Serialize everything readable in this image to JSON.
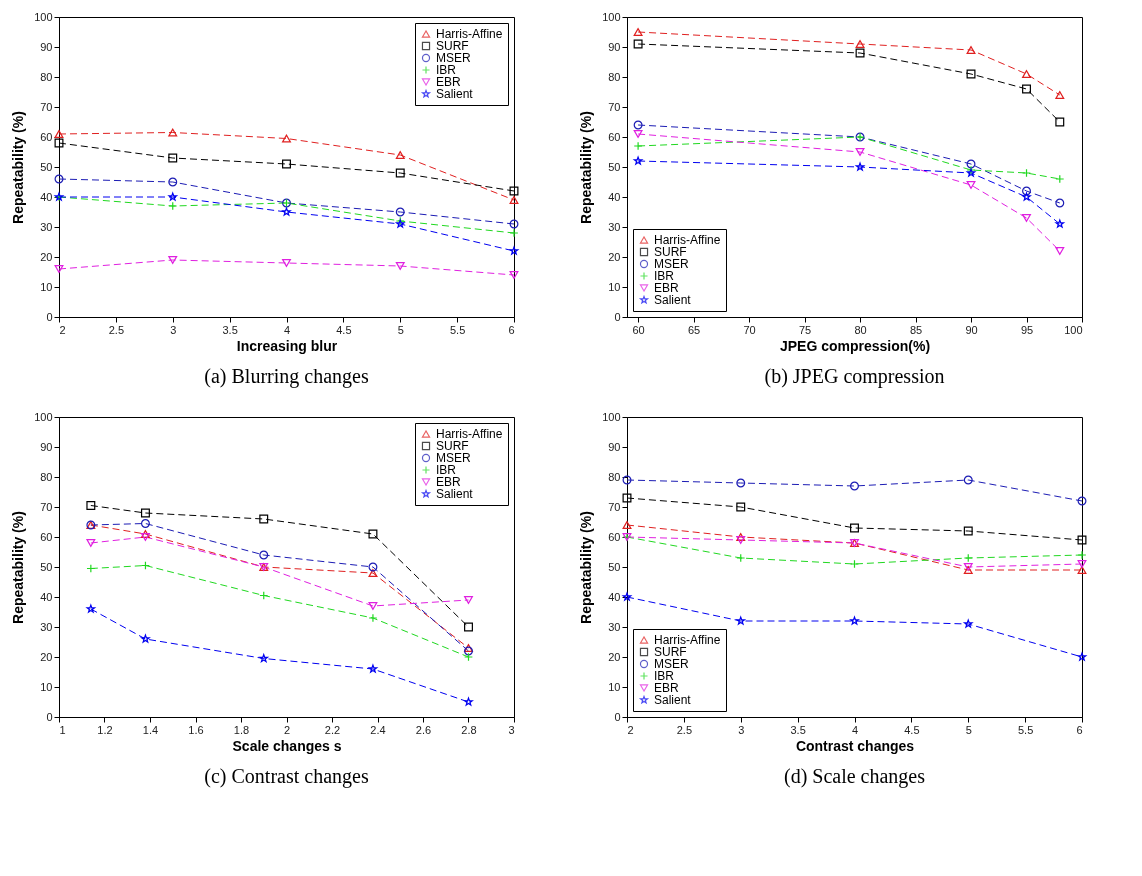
{
  "chart_data": [
    {
      "type": "line",
      "title": "(a) Blurring changes",
      "xlabel": "Increasing blur",
      "ylabel": "Repeatability (%)",
      "x": [
        2,
        3,
        4,
        5,
        6
      ],
      "xlim": [
        2,
        6
      ],
      "xticks": [
        2,
        2.5,
        3,
        3.5,
        4,
        4.5,
        5,
        5.5,
        6
      ],
      "ylim": [
        0,
        100
      ],
      "yticks": [
        0,
        10,
        20,
        30,
        40,
        50,
        60,
        70,
        80,
        90,
        100
      ],
      "legend": "top right",
      "line_style": "dashed",
      "series": [
        {
          "name": "Harris-Affine",
          "color": "#e02020",
          "marker": "triangle",
          "values": [
            61,
            61.5,
            59.5,
            54,
            39
          ]
        },
        {
          "name": "SURF",
          "color": "#000000",
          "marker": "square",
          "values": [
            58,
            53,
            51,
            48,
            42
          ]
        },
        {
          "name": "MSER",
          "color": "#1c1cb4",
          "marker": "circle",
          "values": [
            46,
            45,
            38,
            35,
            31
          ]
        },
        {
          "name": "IBR",
          "color": "#20d820",
          "marker": "cross",
          "values": [
            40,
            37,
            38,
            32,
            28
          ]
        },
        {
          "name": "EBR",
          "color": "#e020e0",
          "marker": "triangle-down",
          "values": [
            16,
            19,
            18,
            17,
            14
          ]
        },
        {
          "name": "Salient",
          "color": "#0000f0",
          "marker": "star",
          "values": [
            40,
            40,
            35,
            31,
            22
          ]
        }
      ]
    },
    {
      "type": "line",
      "title": "(b) JPEG compression",
      "xlabel": "JPEG compression(%)",
      "ylabel": "Repeatability (%)",
      "x": [
        60,
        80,
        90,
        95,
        98
      ],
      "xlim": [
        59,
        100
      ],
      "xticks": [
        60,
        65,
        70,
        75,
        80,
        85,
        90,
        95,
        100
      ],
      "ylim": [
        0,
        100
      ],
      "yticks": [
        0,
        10,
        20,
        30,
        40,
        50,
        60,
        70,
        80,
        90,
        100
      ],
      "legend": "bottom left",
      "line_style": "dashed",
      "series": [
        {
          "name": "Harris-Affine",
          "color": "#e02020",
          "marker": "triangle",
          "values": [
            95,
            91,
            89,
            81,
            74
          ]
        },
        {
          "name": "SURF",
          "color": "#000000",
          "marker": "square",
          "values": [
            91,
            88,
            81,
            76,
            65
          ]
        },
        {
          "name": "MSER",
          "color": "#1c1cb4",
          "marker": "circle",
          "values": [
            64,
            60,
            51,
            42,
            38
          ]
        },
        {
          "name": "IBR",
          "color": "#20d820",
          "marker": "cross",
          "values": [
            57,
            60,
            49,
            48,
            46
          ]
        },
        {
          "name": "EBR",
          "color": "#e020e0",
          "marker": "triangle-down",
          "values": [
            61,
            55,
            44,
            33,
            22
          ]
        },
        {
          "name": "Salient",
          "color": "#0000f0",
          "marker": "star",
          "values": [
            52,
            50,
            48,
            40,
            31
          ]
        }
      ]
    },
    {
      "type": "line",
      "title": "(c) Contrast changes",
      "xlabel": "Scale changes s",
      "ylabel": "Repeatability (%)",
      "x": [
        1.14,
        1.38,
        1.9,
        2.38,
        2.8
      ],
      "xlim": [
        1,
        3
      ],
      "xticks": [
        1,
        1.2,
        1.4,
        1.6,
        1.8,
        2,
        2.2,
        2.4,
        2.6,
        2.8,
        3
      ],
      "ylim": [
        0,
        100
      ],
      "yticks": [
        0,
        10,
        20,
        30,
        40,
        50,
        60,
        70,
        80,
        90,
        100
      ],
      "legend": "top right",
      "line_style": "dashed",
      "series": [
        {
          "name": "Harris-Affine",
          "color": "#e02020",
          "marker": "triangle",
          "values": [
            64,
            61,
            50,
            48,
            23
          ]
        },
        {
          "name": "SURF",
          "color": "#000000",
          "marker": "square",
          "values": [
            70.5,
            68,
            66,
            61,
            30
          ]
        },
        {
          "name": "MSER",
          "color": "#1c1cb4",
          "marker": "circle",
          "values": [
            64,
            64.5,
            54,
            50,
            22
          ]
        },
        {
          "name": "IBR",
          "color": "#20d820",
          "marker": "cross",
          "values": [
            49.5,
            50.5,
            40.5,
            33,
            20
          ]
        },
        {
          "name": "EBR",
          "color": "#e020e0",
          "marker": "triangle-down",
          "values": [
            58,
            60,
            50,
            37,
            39
          ]
        },
        {
          "name": "Salient",
          "color": "#0000f0",
          "marker": "star",
          "values": [
            36,
            26,
            19.5,
            16,
            5
          ]
        }
      ]
    },
    {
      "type": "line",
      "title": "(d) Scale changes",
      "xlabel": "Contrast changes",
      "ylabel": "Repeatability (%)",
      "x": [
        2,
        3,
        4,
        5,
        6
      ],
      "xlim": [
        2,
        6
      ],
      "xticks": [
        2,
        2.5,
        3,
        3.5,
        4,
        4.5,
        5,
        5.5,
        6
      ],
      "ylim": [
        0,
        100
      ],
      "yticks": [
        0,
        10,
        20,
        30,
        40,
        50,
        60,
        70,
        80,
        90,
        100
      ],
      "legend": "bottom left",
      "line_style": "dashed",
      "series": [
        {
          "name": "Harris-Affine",
          "color": "#e02020",
          "marker": "triangle",
          "values": [
            64,
            60,
            58,
            49,
            49
          ]
        },
        {
          "name": "SURF",
          "color": "#000000",
          "marker": "square",
          "values": [
            73,
            70,
            63,
            62,
            59
          ]
        },
        {
          "name": "MSER",
          "color": "#1c1cb4",
          "marker": "circle",
          "values": [
            79,
            78,
            77,
            79,
            72
          ]
        },
        {
          "name": "IBR",
          "color": "#20d820",
          "marker": "cross",
          "values": [
            60,
            53,
            51,
            53,
            54
          ]
        },
        {
          "name": "EBR",
          "color": "#e020e0",
          "marker": "triangle-down",
          "values": [
            60,
            59,
            58,
            50,
            51
          ]
        },
        {
          "name": "Salient",
          "color": "#0000f0",
          "marker": "star",
          "values": [
            40,
            32,
            32,
            31,
            20
          ]
        }
      ]
    }
  ]
}
